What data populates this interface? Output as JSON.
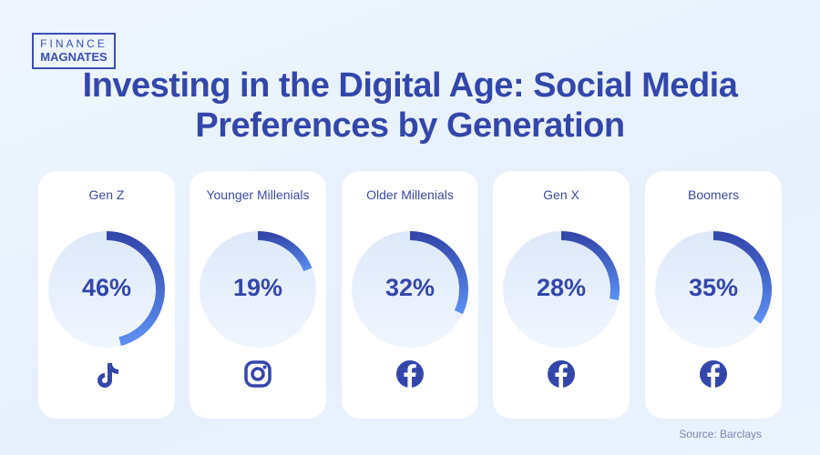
{
  "logo": {
    "line1": "FINANCE",
    "line2": "MAGNATES"
  },
  "title": "Investing in the Digital Age: Social Media Preferences by Generation",
  "source": "Source: Barclays",
  "colors": {
    "accent": "#3347ab",
    "arc_start": "#3347ab",
    "arc_end": "#5b8ef0",
    "card": "#ffffff"
  },
  "chart_data": {
    "type": "donut",
    "title": "Investing in the Digital Age: Social Media Preferences by Generation",
    "categories": [
      "Gen Z",
      "Younger Millenials",
      "Older Millenials",
      "Gen X",
      "Boomers"
    ],
    "values": [
      46,
      19,
      32,
      28,
      35
    ],
    "labels": [
      "46%",
      "19%",
      "32%",
      "28%",
      "35%"
    ],
    "platforms": [
      "tiktok-icon",
      "instagram-icon",
      "facebook-icon",
      "facebook-icon",
      "facebook-icon"
    ]
  }
}
